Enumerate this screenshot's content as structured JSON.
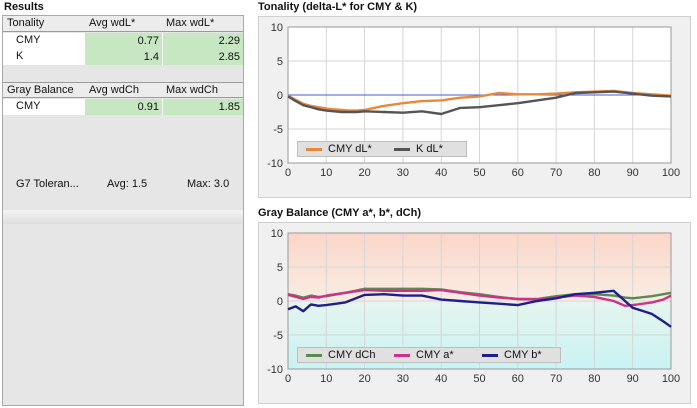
{
  "results": {
    "title": "Results",
    "tonality": {
      "headers": [
        "Tonality",
        "Avg wdL*",
        "Max wdL*"
      ],
      "rows": [
        {
          "label": "CMY",
          "avg": "0.77",
          "max": "2.29"
        },
        {
          "label": "K",
          "avg": "1.4",
          "max": "2.85"
        }
      ]
    },
    "gray_balance": {
      "headers": [
        "Gray Balance",
        "Avg wdCh",
        "Max wdCh"
      ],
      "rows": [
        {
          "label": "CMY",
          "avg": "0.91",
          "max": "1.85"
        }
      ]
    },
    "tolerance": {
      "label": "G7 Toleran...",
      "avg": "Avg: 1.5",
      "max": "Max: 3.0"
    }
  },
  "chart_data": [
    {
      "type": "line",
      "title": "Tonality (delta-L* for CMY & K)",
      "xlim": [
        0,
        100
      ],
      "ylim": [
        -10,
        10
      ],
      "xticks": [
        "0",
        "10",
        "20",
        "30",
        "40",
        "50",
        "60",
        "70",
        "80",
        "90",
        "100"
      ],
      "yticks": [
        "10",
        "5",
        "0",
        "-5",
        "-10"
      ],
      "grid": true,
      "legend_position": "bottom-left",
      "x": [
        0,
        2,
        4,
        6,
        8,
        10,
        12,
        14,
        16,
        18,
        20,
        25,
        30,
        35,
        40,
        45,
        50,
        55,
        60,
        65,
        70,
        75,
        80,
        85,
        90,
        95,
        100
      ],
      "series": [
        {
          "name": "CMY dL*",
          "color": "#e8883a",
          "values": [
            -0.1,
            -0.7,
            -1.3,
            -1.6,
            -1.8,
            -2.0,
            -2.1,
            -2.2,
            -2.3,
            -2.3,
            -2.2,
            -1.6,
            -1.2,
            -0.9,
            -0.8,
            -0.4,
            -0.2,
            0.3,
            0.1,
            0.1,
            0.2,
            0.4,
            0.5,
            0.6,
            0.3,
            0.1,
            -0.1
          ]
        },
        {
          "name": "K dL*",
          "color": "#555555",
          "values": [
            -0.2,
            -0.9,
            -1.5,
            -1.8,
            -2.1,
            -2.3,
            -2.4,
            -2.5,
            -2.5,
            -2.5,
            -2.4,
            -2.5,
            -2.6,
            -2.4,
            -2.8,
            -1.9,
            -1.8,
            -1.5,
            -1.2,
            -0.8,
            -0.4,
            0.3,
            0.4,
            0.5,
            0.2,
            -0.1,
            -0.2
          ]
        }
      ]
    },
    {
      "type": "line",
      "title": "Gray Balance (CMY a*, b*, dCh)",
      "xlim": [
        0,
        100
      ],
      "ylim": [
        -10,
        10
      ],
      "xticks": [
        "0",
        "10",
        "20",
        "30",
        "40",
        "50",
        "60",
        "70",
        "80",
        "90",
        "100"
      ],
      "yticks": [
        "10",
        "5",
        "0",
        "-5",
        "-10"
      ],
      "grid": true,
      "legend_position": "bottom",
      "x": [
        0,
        2,
        4,
        6,
        8,
        10,
        15,
        20,
        25,
        30,
        35,
        40,
        45,
        50,
        55,
        60,
        65,
        70,
        75,
        80,
        85,
        88,
        90,
        95,
        98,
        100
      ],
      "series": [
        {
          "name": "CMY dCh",
          "color": "#5a8a50",
          "values": [
            1.0,
            0.8,
            0.5,
            0.8,
            0.6,
            0.7,
            1.2,
            1.8,
            1.8,
            1.8,
            1.8,
            1.7,
            1.3,
            1.0,
            0.6,
            0.3,
            0.3,
            0.7,
            1.0,
            1.0,
            0.8,
            0.5,
            0.4,
            0.7,
            1.0,
            1.2
          ]
        },
        {
          "name": "CMY a*",
          "color": "#cc3388",
          "values": [
            0.9,
            0.6,
            0.3,
            0.6,
            0.5,
            0.8,
            1.2,
            1.6,
            1.5,
            1.5,
            1.5,
            1.6,
            1.2,
            0.8,
            0.5,
            0.3,
            0.2,
            0.5,
            0.8,
            0.6,
            0.0,
            -0.7,
            -0.6,
            -0.2,
            0.2,
            0.8
          ]
        },
        {
          "name": "CMY b*",
          "color": "#1f1f8c",
          "values": [
            -1.2,
            -0.8,
            -1.5,
            -0.5,
            -0.7,
            -0.6,
            -0.2,
            0.9,
            1.0,
            0.8,
            0.8,
            0.2,
            0.0,
            -0.2,
            -0.4,
            -0.6,
            0.0,
            0.4,
            1.0,
            1.2,
            1.5,
            0.0,
            -1.0,
            -1.9,
            -3.0,
            -3.8
          ]
        }
      ]
    }
  ]
}
